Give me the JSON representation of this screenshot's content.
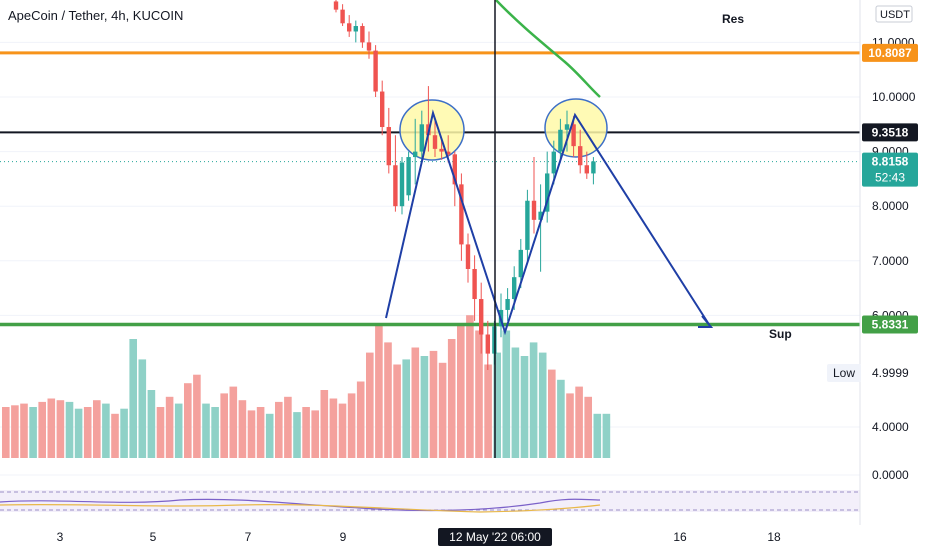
{
  "header": {
    "title": "ApeCoin / Tether, 4h, KUCOIN"
  },
  "price_scale": {
    "currency": "USDT"
  },
  "annotations": {
    "res": "Res",
    "sup": "Sup"
  },
  "low_box": {
    "label": "Low",
    "value": "4.9999"
  },
  "price_tags": {
    "resistance": "10.8087",
    "neckline": "9.3518",
    "current": "8.8158",
    "countdown": "52:43",
    "support": "5.8331"
  },
  "x_axis": {
    "ticks": [
      "3",
      "5",
      "7",
      "9",
      "16",
      "18"
    ],
    "crosshair_label": "12 May '22   06:00"
  },
  "colors": {
    "up": "#26a69a",
    "down": "#ef5350",
    "vol_up": "#8fd1c7",
    "vol_down": "#f4a19d",
    "resistance": "#f7931a",
    "support": "#43a047",
    "neckline": "#131722",
    "ma": "#3bb34a",
    "drawing": "#1f3fa6",
    "highlight_fill": "#fff9a8",
    "highlight_stroke": "#3d6fc7"
  },
  "chart_data": {
    "type": "candlestick",
    "y_ticks": [
      11.0,
      10.0,
      9.0,
      8.0,
      7.0,
      6.0,
      4.0,
      0.0
    ],
    "horizontal_levels": [
      {
        "name": "Res",
        "price": 10.8087
      },
      {
        "name": "neckline",
        "price": 9.3518
      },
      {
        "name": "Sup",
        "price": 5.8331
      }
    ],
    "last_price": 8.8158,
    "low": 4.9999,
    "candles": [
      [
        11.75,
        11.85,
        11.55,
        11.6
      ],
      [
        11.6,
        11.7,
        11.3,
        11.35
      ],
      [
        11.35,
        11.5,
        11.1,
        11.2
      ],
      [
        11.2,
        11.4,
        11.0,
        11.3
      ],
      [
        11.3,
        11.35,
        10.9,
        11.0
      ],
      [
        11.0,
        11.2,
        10.7,
        10.85
      ],
      [
        10.85,
        10.95,
        10.0,
        10.1
      ],
      [
        10.1,
        10.3,
        9.3,
        9.45
      ],
      [
        9.45,
        9.8,
        8.6,
        8.75
      ],
      [
        8.75,
        9.3,
        7.9,
        8.0
      ],
      [
        8.0,
        8.9,
        7.85,
        8.8
      ],
      [
        8.2,
        9.0,
        8.1,
        8.9
      ],
      [
        8.9,
        9.6,
        8.4,
        9.0
      ],
      [
        9.0,
        9.75,
        8.8,
        9.5
      ],
      [
        9.5,
        10.2,
        9.0,
        9.3
      ],
      [
        9.3,
        9.6,
        8.9,
        9.05
      ],
      [
        9.05,
        9.2,
        8.85,
        9.0
      ],
      [
        9.0,
        9.3,
        8.8,
        8.95
      ],
      [
        8.95,
        9.0,
        8.0,
        8.4
      ],
      [
        8.4,
        8.6,
        7.0,
        7.3
      ],
      [
        7.3,
        7.5,
        6.6,
        6.85
      ],
      [
        6.85,
        7.1,
        5.9,
        6.3
      ],
      [
        6.3,
        6.6,
        5.3,
        5.65
      ],
      [
        5.65,
        5.9,
        4.9999,
        5.3
      ],
      [
        5.3,
        5.9,
        5.1,
        5.8
      ],
      [
        5.8,
        6.4,
        5.6,
        6.1
      ],
      [
        6.1,
        6.5,
        5.9,
        6.3
      ],
      [
        6.3,
        6.9,
        6.1,
        6.7
      ],
      [
        6.7,
        7.4,
        6.5,
        7.2
      ],
      [
        7.2,
        8.3,
        7.0,
        8.1
      ],
      [
        8.1,
        8.9,
        7.5,
        7.75
      ],
      [
        7.75,
        8.4,
        6.8,
        7.9
      ],
      [
        7.9,
        9.0,
        7.7,
        8.6
      ],
      [
        8.6,
        9.2,
        8.4,
        9.0
      ],
      [
        9.0,
        9.6,
        8.8,
        9.4
      ],
      [
        9.4,
        9.75,
        9.0,
        9.5
      ],
      [
        9.5,
        9.65,
        8.9,
        9.1
      ],
      [
        9.1,
        9.4,
        8.6,
        8.75
      ],
      [
        8.75,
        9.0,
        8.5,
        8.6
      ],
      [
        8.6,
        8.9,
        8.4,
        8.82
      ]
    ],
    "volume_bars": [
      {
        "dir": "down",
        "v": 0.3
      },
      {
        "dir": "down",
        "v": 0.31
      },
      {
        "dir": "down",
        "v": 0.32
      },
      {
        "dir": "up",
        "v": 0.3
      },
      {
        "dir": "down",
        "v": 0.33
      },
      {
        "dir": "down",
        "v": 0.35
      },
      {
        "dir": "down",
        "v": 0.34
      },
      {
        "dir": "up",
        "v": 0.33
      },
      {
        "dir": "up",
        "v": 0.29
      },
      {
        "dir": "down",
        "v": 0.3
      },
      {
        "dir": "down",
        "v": 0.34
      },
      {
        "dir": "up",
        "v": 0.32
      },
      {
        "dir": "down",
        "v": 0.26
      },
      {
        "dir": "up",
        "v": 0.29
      },
      {
        "dir": "up",
        "v": 0.7
      },
      {
        "dir": "up",
        "v": 0.58
      },
      {
        "dir": "up",
        "v": 0.4
      },
      {
        "dir": "down",
        "v": 0.3
      },
      {
        "dir": "down",
        "v": 0.36
      },
      {
        "dir": "up",
        "v": 0.32
      },
      {
        "dir": "down",
        "v": 0.44
      },
      {
        "dir": "down",
        "v": 0.49
      },
      {
        "dir": "up",
        "v": 0.32
      },
      {
        "dir": "up",
        "v": 0.3
      },
      {
        "dir": "down",
        "v": 0.38
      },
      {
        "dir": "down",
        "v": 0.42
      },
      {
        "dir": "down",
        "v": 0.34
      },
      {
        "dir": "down",
        "v": 0.28
      },
      {
        "dir": "down",
        "v": 0.3
      },
      {
        "dir": "up",
        "v": 0.26
      },
      {
        "dir": "down",
        "v": 0.33
      },
      {
        "dir": "down",
        "v": 0.36
      },
      {
        "dir": "up",
        "v": 0.27
      },
      {
        "dir": "down",
        "v": 0.3
      },
      {
        "dir": "down",
        "v": 0.28
      },
      {
        "dir": "down",
        "v": 0.4
      },
      {
        "dir": "down",
        "v": 0.35
      },
      {
        "dir": "down",
        "v": 0.32
      },
      {
        "dir": "down",
        "v": 0.38
      },
      {
        "dir": "down",
        "v": 0.45
      },
      {
        "dir": "down",
        "v": 0.62
      },
      {
        "dir": "down",
        "v": 0.78
      },
      {
        "dir": "down",
        "v": 0.68
      },
      {
        "dir": "down",
        "v": 0.55
      },
      {
        "dir": "up",
        "v": 0.58
      },
      {
        "dir": "down",
        "v": 0.65
      },
      {
        "dir": "up",
        "v": 0.6
      },
      {
        "dir": "down",
        "v": 0.63
      },
      {
        "dir": "down",
        "v": 0.56
      },
      {
        "dir": "down",
        "v": 0.7
      },
      {
        "dir": "down",
        "v": 0.78
      },
      {
        "dir": "down",
        "v": 0.84
      },
      {
        "dir": "down",
        "v": 0.75
      },
      {
        "dir": "down",
        "v": 0.55
      },
      {
        "dir": "up",
        "v": 0.62
      },
      {
        "dir": "up",
        "v": 0.75
      },
      {
        "dir": "up",
        "v": 0.65
      },
      {
        "dir": "up",
        "v": 0.6
      },
      {
        "dir": "up",
        "v": 0.68
      },
      {
        "dir": "up",
        "v": 0.62
      },
      {
        "dir": "down",
        "v": 0.52
      },
      {
        "dir": "up",
        "v": 0.46
      },
      {
        "dir": "down",
        "v": 0.38
      },
      {
        "dir": "down",
        "v": 0.42
      },
      {
        "dir": "down",
        "v": 0.36
      },
      {
        "dir": "up",
        "v": 0.26
      },
      {
        "dir": "up",
        "v": 0.26
      }
    ],
    "pattern": "double top with neckline 9.3518 and projected move to support 5.8331"
  }
}
